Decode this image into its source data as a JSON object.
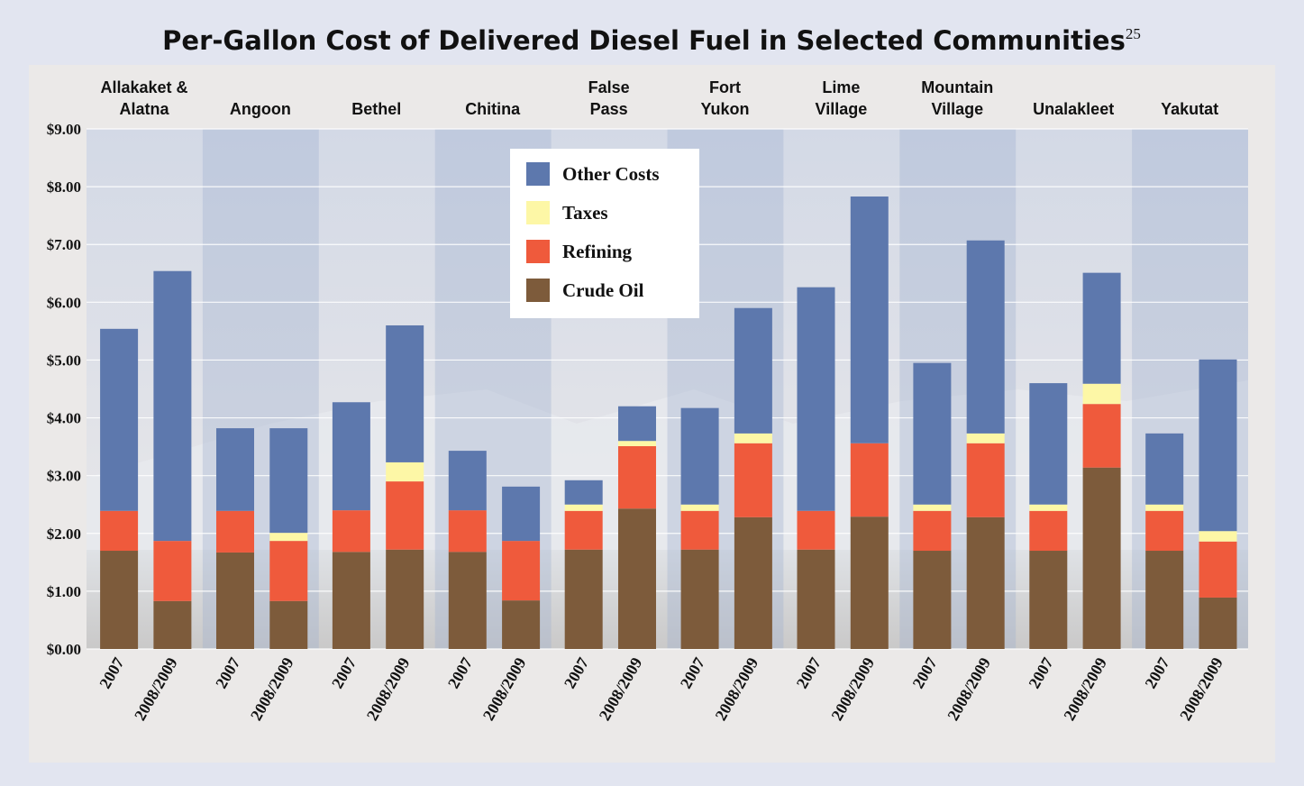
{
  "chart_data": {
    "type": "stacked-bar",
    "title": "Per-Gallon Cost of Delivered Diesel Fuel in Selected Communities",
    "footnote": "25",
    "groups": [
      "Allakaket &\nAlatna",
      "Angoon",
      "Bethel",
      "Chitina",
      "False\nPass",
      "Fort\nYukon",
      "Lime\nVillage",
      "Mountain\nVillage",
      "Unalakleet",
      "Yakutat"
    ],
    "periods": [
      "2007",
      "2008/2009"
    ],
    "series": [
      {
        "name": "Crude Oil",
        "color": "#7d5b3b",
        "values": [
          1.7,
          0.83,
          1.67,
          0.83,
          1.68,
          1.72,
          1.68,
          0.84,
          1.72,
          2.43,
          1.72,
          2.28,
          1.72,
          2.29,
          1.7,
          2.28,
          1.7,
          3.14,
          1.7,
          0.89
        ]
      },
      {
        "name": "Refining",
        "color": "#ef5a3c",
        "values": [
          0.69,
          1.04,
          0.72,
          1.04,
          0.72,
          1.18,
          0.72,
          1.03,
          0.67,
          1.08,
          0.67,
          1.28,
          0.67,
          1.27,
          0.69,
          1.28,
          0.69,
          1.1,
          0.69,
          0.97
        ]
      },
      {
        "name": "Taxes",
        "color": "#fdf7a6",
        "values": [
          0,
          0,
          0,
          0.14,
          0,
          0.33,
          0,
          0,
          0.11,
          0.09,
          0.11,
          0.17,
          0,
          0,
          0.11,
          0.17,
          0.11,
          0.35,
          0.11,
          0.18
        ]
      },
      {
        "name": "Other Costs",
        "color": "#5d78ad",
        "values": [
          3.15,
          4.67,
          1.43,
          1.81,
          1.87,
          2.37,
          1.03,
          0.94,
          0.42,
          0.6,
          1.67,
          2.17,
          3.87,
          4.27,
          2.45,
          3.34,
          2.1,
          1.92,
          1.23,
          2.97
        ]
      }
    ],
    "ylim": [
      0,
      9
    ],
    "yticks": [
      {
        "value": 0,
        "label": "$0.00"
      },
      {
        "value": 1,
        "label": "$1.00"
      },
      {
        "value": 2,
        "label": "$2.00"
      },
      {
        "value": 3,
        "label": "$3.00"
      },
      {
        "value": 4,
        "label": "$4.00"
      },
      {
        "value": 5,
        "label": "$5.00"
      },
      {
        "value": 6,
        "label": "$6.00"
      },
      {
        "value": 7,
        "label": "$7.00"
      },
      {
        "value": 8,
        "label": "$8.00"
      },
      {
        "value": 9,
        "label": "$9.00"
      }
    ],
    "grid": true
  }
}
